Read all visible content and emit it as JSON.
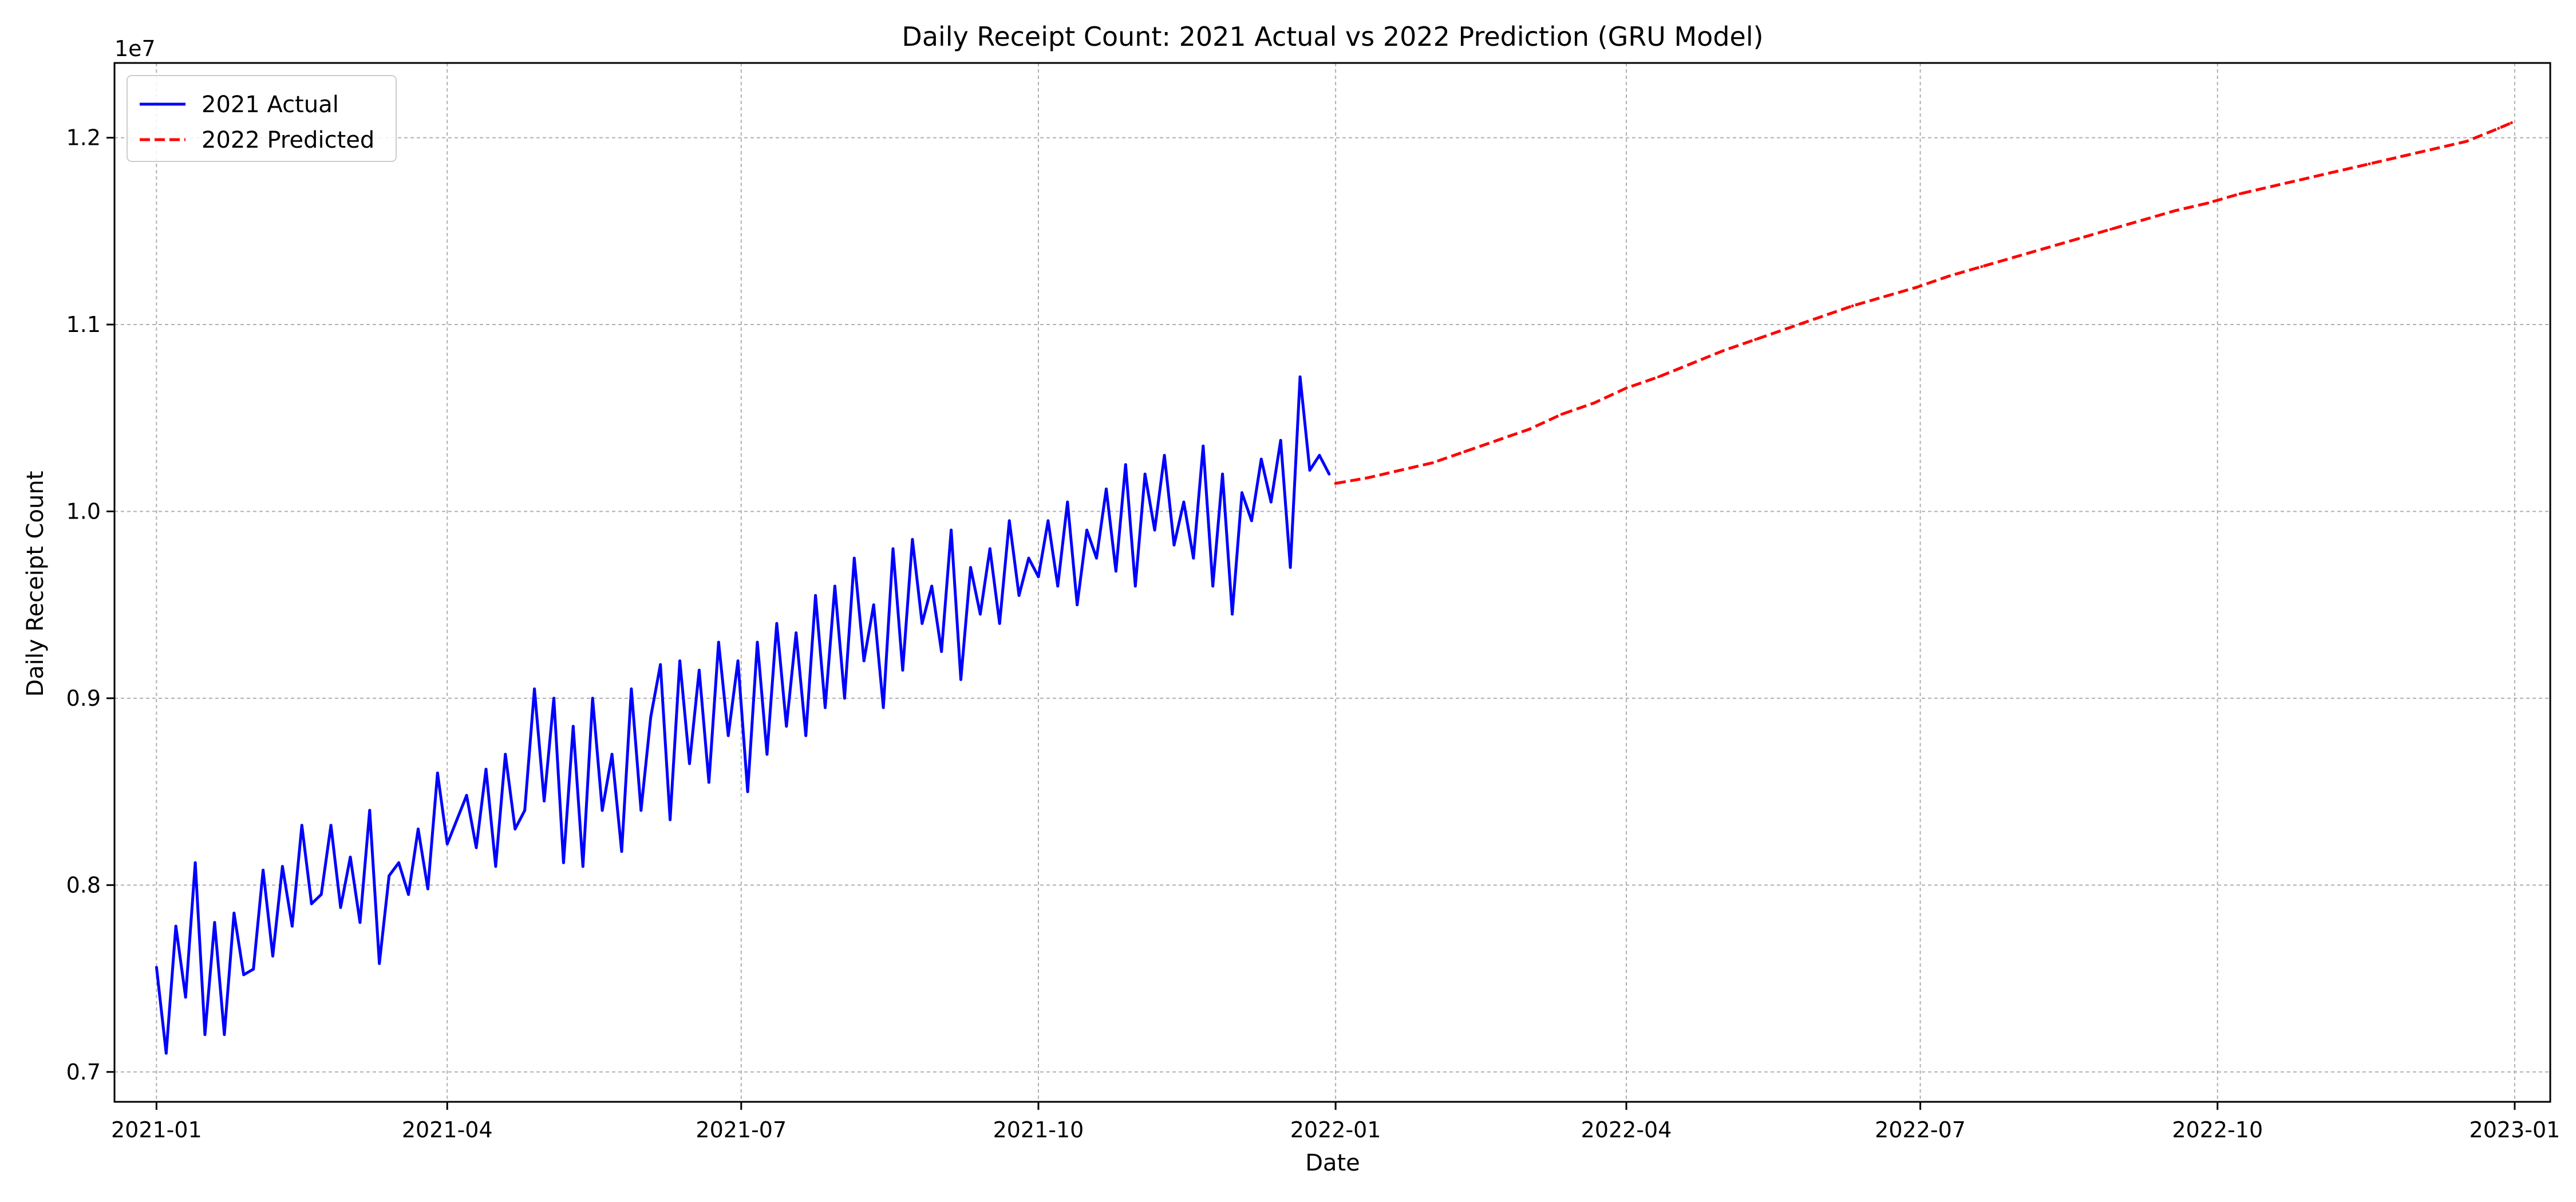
{
  "chart_data": {
    "type": "line",
    "title": "Daily Receipt Count: 2021 Actual vs 2022 Prediction (GRU Model)",
    "xlabel": "Date",
    "ylabel": "Daily Receipt Count",
    "y_offset_label": "1e7",
    "xlim": [
      "2020-12-19",
      "2023-01-12"
    ],
    "ylim": [
      6.84,
      12.4
    ],
    "y_units_note": "",
    "x_ticks": [
      {
        "date": "2021-01-01",
        "label": "2021-01"
      },
      {
        "date": "2021-04-01",
        "label": "2021-04"
      },
      {
        "date": "2021-07-01",
        "label": "2021-07"
      },
      {
        "date": "2021-10-01",
        "label": "2021-10"
      },
      {
        "date": "2022-01-01",
        "label": "2022-01"
      },
      {
        "date": "2022-04-01",
        "label": "2022-04"
      },
      {
        "date": "2022-07-01",
        "label": "2022-07"
      },
      {
        "date": "2022-10-01",
        "label": "2022-10"
      },
      {
        "date": "2023-01-01",
        "label": "2023-01"
      }
    ],
    "y_ticks": [
      {
        "value": 7.0,
        "label": "0.7"
      },
      {
        "value": 8.0,
        "label": "0.8"
      },
      {
        "value": 9.0,
        "label": "0.9"
      },
      {
        "value": 10.0,
        "label": "1.0"
      },
      {
        "value": 11.0,
        "label": "1.1"
      },
      {
        "value": 12.0,
        "label": "1.2"
      }
    ],
    "grid": true,
    "legend_position": "top-left",
    "series": [
      {
        "name": "2021 Actual",
        "color": "#0000ff",
        "style": "solid",
        "x": [
          "2021-01-01",
          "2021-01-04",
          "2021-01-07",
          "2021-01-10",
          "2021-01-13",
          "2021-01-16",
          "2021-01-19",
          "2021-01-22",
          "2021-01-25",
          "2021-01-28",
          "2021-01-31",
          "2021-02-03",
          "2021-02-06",
          "2021-02-09",
          "2021-02-12",
          "2021-02-15",
          "2021-02-18",
          "2021-02-21",
          "2021-02-24",
          "2021-02-27",
          "2021-03-02",
          "2021-03-05",
          "2021-03-08",
          "2021-03-11",
          "2021-03-14",
          "2021-03-17",
          "2021-03-20",
          "2021-03-23",
          "2021-03-26",
          "2021-03-29",
          "2021-04-01",
          "2021-04-04",
          "2021-04-07",
          "2021-04-10",
          "2021-04-13",
          "2021-04-16",
          "2021-04-19",
          "2021-04-22",
          "2021-04-25",
          "2021-04-28",
          "2021-05-01",
          "2021-05-04",
          "2021-05-07",
          "2021-05-10",
          "2021-05-13",
          "2021-05-16",
          "2021-05-19",
          "2021-05-22",
          "2021-05-25",
          "2021-05-28",
          "2021-05-31",
          "2021-06-03",
          "2021-06-06",
          "2021-06-09",
          "2021-06-12",
          "2021-06-15",
          "2021-06-18",
          "2021-06-21",
          "2021-06-24",
          "2021-06-27",
          "2021-06-30",
          "2021-07-03",
          "2021-07-06",
          "2021-07-09",
          "2021-07-12",
          "2021-07-15",
          "2021-07-18",
          "2021-07-21",
          "2021-07-24",
          "2021-07-27",
          "2021-07-30",
          "2021-08-02",
          "2021-08-05",
          "2021-08-08",
          "2021-08-11",
          "2021-08-14",
          "2021-08-17",
          "2021-08-20",
          "2021-08-23",
          "2021-08-26",
          "2021-08-29",
          "2021-09-01",
          "2021-09-04",
          "2021-09-07",
          "2021-09-10",
          "2021-09-13",
          "2021-09-16",
          "2021-09-19",
          "2021-09-22",
          "2021-09-25",
          "2021-09-28",
          "2021-10-01",
          "2021-10-04",
          "2021-10-07",
          "2021-10-10",
          "2021-10-13",
          "2021-10-16",
          "2021-10-19",
          "2021-10-22",
          "2021-10-25",
          "2021-10-28",
          "2021-10-31",
          "2021-11-03",
          "2021-11-06",
          "2021-11-09",
          "2021-11-12",
          "2021-11-15",
          "2021-11-18",
          "2021-11-21",
          "2021-11-24",
          "2021-11-27",
          "2021-11-30",
          "2021-12-03",
          "2021-12-06",
          "2021-12-09",
          "2021-12-12",
          "2021-12-15",
          "2021-12-18",
          "2021-12-21",
          "2021-12-24",
          "2021-12-27",
          "2021-12-30"
        ],
        "values": [
          7.56,
          7.1,
          7.78,
          7.4,
          8.12,
          7.2,
          7.8,
          7.2,
          7.85,
          7.52,
          7.55,
          8.08,
          7.62,
          8.1,
          7.78,
          8.32,
          7.9,
          7.95,
          8.32,
          7.88,
          8.15,
          7.8,
          8.4,
          7.58,
          8.05,
          8.12,
          7.95,
          8.3,
          7.98,
          8.6,
          8.22,
          8.35,
          8.48,
          8.2,
          8.62,
          8.1,
          8.7,
          8.3,
          8.4,
          9.05,
          8.45,
          9.0,
          8.12,
          8.85,
          8.1,
          9.0,
          8.4,
          8.7,
          8.18,
          9.05,
          8.4,
          8.9,
          9.18,
          8.35,
          9.2,
          8.65,
          9.15,
          8.55,
          9.3,
          8.8,
          9.2,
          8.5,
          9.3,
          8.7,
          9.4,
          8.85,
          9.35,
          8.8,
          9.55,
          8.95,
          9.6,
          9.0,
          9.75,
          9.2,
          9.5,
          8.95,
          9.8,
          9.15,
          9.85,
          9.4,
          9.6,
          9.25,
          9.9,
          9.1,
          9.7,
          9.45,
          9.8,
          9.4,
          9.95,
          9.55,
          9.75,
          9.65,
          9.95,
          9.6,
          10.05,
          9.5,
          9.9,
          9.75,
          10.12,
          9.68,
          10.25,
          9.6,
          10.2,
          9.9,
          10.3,
          9.82,
          10.05,
          9.75,
          10.35,
          9.6,
          10.2,
          9.45,
          10.1,
          9.95,
          10.28,
          10.05,
          10.38,
          9.7,
          10.72,
          10.22,
          10.3,
          10.2
        ]
      },
      {
        "name": "2022 Predicted",
        "color": "#ff0000",
        "style": "dashed",
        "x": [
          "2022-01-01",
          "2022-01-11",
          "2022-01-21",
          "2022-01-31",
          "2022-02-10",
          "2022-02-20",
          "2022-03-02",
          "2022-03-12",
          "2022-03-22",
          "2022-04-01",
          "2022-04-11",
          "2022-04-21",
          "2022-05-01",
          "2022-05-11",
          "2022-05-21",
          "2022-05-31",
          "2022-06-10",
          "2022-06-20",
          "2022-06-30",
          "2022-07-10",
          "2022-07-20",
          "2022-07-30",
          "2022-08-09",
          "2022-08-19",
          "2022-08-29",
          "2022-09-08",
          "2022-09-18",
          "2022-09-28",
          "2022-10-08",
          "2022-10-18",
          "2022-10-28",
          "2022-11-07",
          "2022-11-17",
          "2022-11-27",
          "2022-12-07",
          "2022-12-17",
          "2022-12-27",
          "2022-12-31"
        ],
        "values": [
          10.15,
          10.18,
          10.22,
          10.26,
          10.32,
          10.38,
          10.44,
          10.52,
          10.58,
          10.66,
          10.72,
          10.79,
          10.86,
          10.92,
          10.98,
          11.04,
          11.1,
          11.15,
          11.2,
          11.26,
          11.31,
          11.36,
          11.41,
          11.46,
          11.51,
          11.56,
          11.61,
          11.65,
          11.7,
          11.74,
          11.78,
          11.82,
          11.86,
          11.9,
          11.94,
          11.98,
          12.05,
          12.08
        ]
      }
    ]
  }
}
